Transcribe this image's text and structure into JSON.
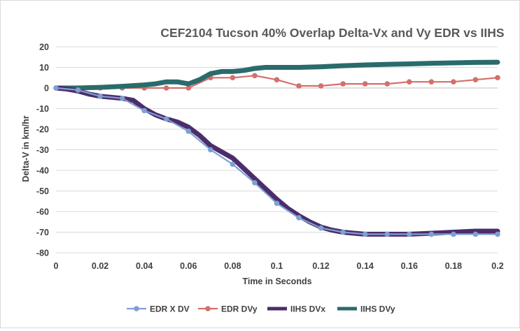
{
  "chart_data": {
    "type": "line",
    "title": "CEF2104 Tucson 40% Overlap Delta-Vx and Vy EDR vs IIHS",
    "xlabel": "Time in Seconds",
    "ylabel": "Delta-V in km/hr",
    "xlim": [
      0,
      0.2
    ],
    "ylim": [
      -80,
      20
    ],
    "xticks": [
      "0",
      "0.02",
      "0.04",
      "0.06",
      "0.08",
      "0.1",
      "0.12",
      "0.14",
      "0.16",
      "0.18",
      "0.2"
    ],
    "yticks": [
      "20",
      "10",
      "0",
      "-10",
      "-20",
      "-30",
      "-40",
      "-50",
      "-60",
      "-70",
      "-80"
    ],
    "grid": "horizontal",
    "legend": "bottom",
    "series": [
      {
        "name": "EDR X DV",
        "color": "#7f9fd3",
        "style": "line-markers",
        "x": [
          0,
          0.01,
          0.02,
          0.03,
          0.04,
          0.05,
          0.06,
          0.07,
          0.08,
          0.09,
          0.1,
          0.11,
          0.12,
          0.13,
          0.14,
          0.15,
          0.16,
          0.17,
          0.18,
          0.19,
          0.2
        ],
        "y": [
          0,
          -1,
          -4,
          -5,
          -11,
          -15,
          -21,
          -30,
          -37,
          -46,
          -56,
          -63,
          -68,
          -70,
          -71,
          -71,
          -71,
          -71,
          -71,
          -71,
          -71
        ]
      },
      {
        "name": "EDR DVy",
        "color": "#d36f6c",
        "style": "line-markers",
        "x": [
          0,
          0.01,
          0.02,
          0.03,
          0.04,
          0.05,
          0.06,
          0.07,
          0.08,
          0.09,
          0.1,
          0.11,
          0.12,
          0.13,
          0.14,
          0.15,
          0.16,
          0.17,
          0.18,
          0.19,
          0.2
        ],
        "y": [
          0,
          0,
          0,
          0,
          0,
          0,
          0,
          5,
          5,
          6,
          4,
          1,
          1,
          2,
          2,
          2,
          3,
          3,
          3,
          4,
          5
        ]
      },
      {
        "name": "IIHS DVx",
        "color": "#4b2d6b",
        "style": "thick-line",
        "x": [
          0,
          0.005,
          0.01,
          0.015,
          0.02,
          0.025,
          0.03,
          0.035,
          0.04,
          0.045,
          0.05,
          0.055,
          0.06,
          0.065,
          0.07,
          0.075,
          0.08,
          0.085,
          0.09,
          0.095,
          0.1,
          0.105,
          0.11,
          0.115,
          0.12,
          0.125,
          0.13,
          0.135,
          0.14,
          0.15,
          0.16,
          0.17,
          0.18,
          0.19,
          0.2
        ],
        "y": [
          0,
          -0.5,
          -1.5,
          -3,
          -4,
          -4.5,
          -5,
          -6,
          -10,
          -13,
          -15,
          -16.5,
          -19,
          -23,
          -28,
          -31,
          -34,
          -39,
          -44,
          -49,
          -54,
          -58.5,
          -62,
          -65,
          -67.5,
          -69,
          -70,
          -70.5,
          -71,
          -71,
          -71,
          -70.5,
          -70,
          -69.5,
          -69.5
        ]
      },
      {
        "name": "IIHS DVy",
        "color": "#2a6b6b",
        "style": "thick-line",
        "x": [
          0,
          0.01,
          0.02,
          0.03,
          0.04,
          0.045,
          0.05,
          0.055,
          0.06,
          0.065,
          0.07,
          0.075,
          0.08,
          0.085,
          0.09,
          0.095,
          0.1,
          0.11,
          0.12,
          0.13,
          0.14,
          0.15,
          0.16,
          0.17,
          0.18,
          0.19,
          0.2
        ],
        "y": [
          0,
          0,
          0.3,
          0.8,
          1.5,
          2,
          3,
          3,
          2,
          4,
          7,
          8,
          8,
          8.5,
          9.5,
          10,
          10,
          10,
          10.3,
          10.8,
          11.2,
          11.5,
          11.7,
          12,
          12.2,
          12.4,
          12.5
        ]
      }
    ]
  }
}
